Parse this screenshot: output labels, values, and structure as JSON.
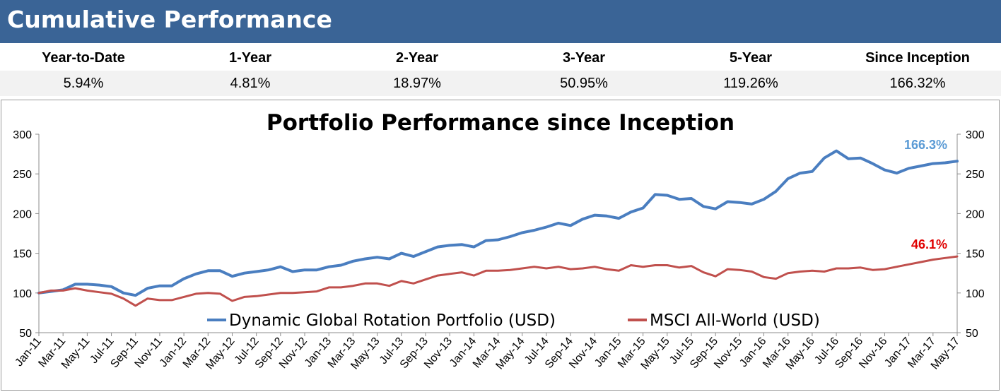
{
  "header": {
    "title": "Cumulative Performance"
  },
  "performance": {
    "labels": [
      "Year-to-Date",
      "1-Year",
      "2-Year",
      "3-Year",
      "5-Year",
      "Since Inception"
    ],
    "values": [
      "5.94%",
      "4.81%",
      "18.97%",
      "50.95%",
      "119.26%",
      "166.32%"
    ]
  },
  "colors": {
    "header": "#3A6496",
    "portfolio": "#4A7EC0",
    "msci": "#C0504D",
    "portfolio_label": "#5B9BD5",
    "msci_label": "#E00000"
  },
  "chart_data": {
    "type": "line",
    "title": "Portfolio Performance since Inception",
    "ylim": [
      50,
      300
    ],
    "yticks": [
      50,
      100,
      150,
      200,
      250,
      300
    ],
    "grid": false,
    "legend_position": "bottom-center",
    "x_tick_labels": [
      "Jan-11",
      "Mar-11",
      "May-11",
      "Jul-11",
      "Sep-11",
      "Nov-11",
      "Jan-12",
      "Mar-12",
      "May-12",
      "Jul-12",
      "Sep-12",
      "Nov-12",
      "Jan-13",
      "Mar-13",
      "May-13",
      "Jul-13",
      "Sep-13",
      "Nov-13",
      "Jan-14",
      "Mar-14",
      "May-14",
      "Jul-14",
      "Sep-14",
      "Nov-14",
      "Jan-15",
      "Mar-15",
      "May-15",
      "Jul-15",
      "Sep-15",
      "Nov-15",
      "Jan-16",
      "Mar-16",
      "May-16",
      "Jul-16",
      "Sep-16",
      "Nov-16",
      "Jan-17",
      "Mar-17",
      "May-17"
    ],
    "series": [
      {
        "name": "Dynamic Global Rotation Portfolio (USD)",
        "end_label": "166.3%",
        "values": [
          100,
          102,
          104,
          111,
          111,
          110,
          108,
          100,
          97,
          106,
          109,
          109,
          118,
          124,
          128,
          128,
          121,
          125,
          127,
          129,
          133,
          127,
          129,
          129,
          133,
          135,
          140,
          143,
          145,
          143,
          150,
          146,
          152,
          158,
          160,
          161,
          158,
          166,
          167,
          171,
          176,
          179,
          183,
          188,
          185,
          193,
          198,
          197,
          194,
          202,
          207,
          224,
          223,
          218,
          219,
          209,
          206,
          215,
          214,
          212,
          218,
          228,
          244,
          251,
          253,
          270,
          279,
          269,
          270,
          263,
          255,
          251,
          257,
          260,
          263,
          264,
          266
        ]
      },
      {
        "name": "MSCI All-World (USD)",
        "end_label": "46.1%",
        "values": [
          100,
          103,
          103,
          106,
          103,
          101,
          99,
          93,
          84,
          93,
          91,
          91,
          95,
          99,
          100,
          99,
          90,
          95,
          96,
          98,
          100,
          100,
          101,
          102,
          107,
          107,
          109,
          112,
          112,
          109,
          115,
          112,
          117,
          122,
          124,
          126,
          122,
          128,
          128,
          129,
          131,
          133,
          131,
          133,
          130,
          131,
          133,
          130,
          128,
          135,
          133,
          135,
          135,
          132,
          134,
          126,
          121,
          130,
          129,
          127,
          120,
          118,
          125,
          127,
          128,
          127,
          131,
          131,
          132,
          129,
          130,
          133,
          136,
          139,
          142,
          144,
          146
        ]
      }
    ]
  }
}
